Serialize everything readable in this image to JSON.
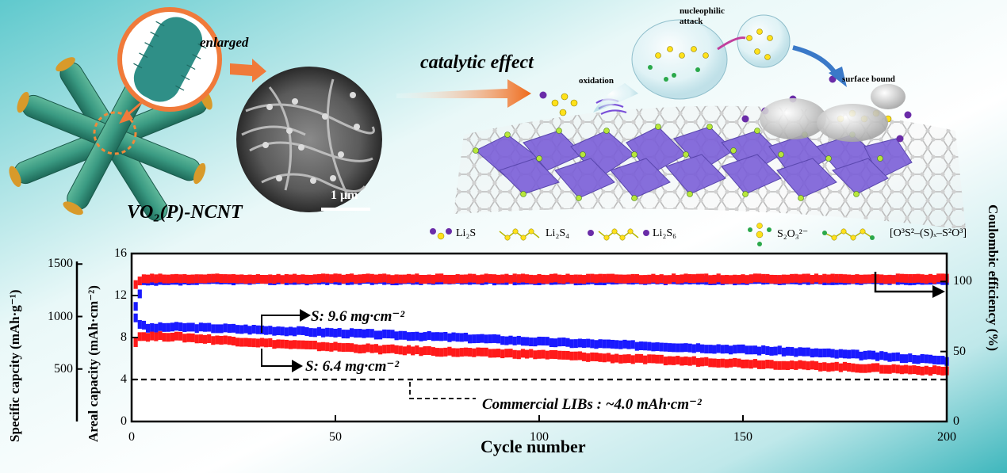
{
  "top": {
    "nanotube_name": "VO₂(P)-NCNT",
    "enlarged_label": "enlarged",
    "scale_bar_label": "1 μm",
    "catalytic_label": "catalytic effect",
    "oxidation_label": "oxidation",
    "nucleophilic_label": "nucleophilic\nattack",
    "surface_bound_label": "surface bound"
  },
  "legend": {
    "items": [
      {
        "label": "Li₂S",
        "icon": "li2s-molecule-icon"
      },
      {
        "label": "Li₂S₄",
        "icon": "li2s4-molecule-icon"
      },
      {
        "label": "Li₂S₆",
        "icon": "li2s6-molecule-icon"
      },
      {
        "label": "S₂O₃²⁻",
        "icon": "thiosulfate-molecule-icon"
      },
      {
        "label": "[O³S²–(S)ₓ–S²O³]",
        "icon": "polythionate-molecule-icon"
      }
    ]
  },
  "chart_data": {
    "type": "line",
    "xlabel": "Cycle number",
    "x_ticks": [
      0,
      50,
      100,
      150,
      200
    ],
    "xlim": [
      0,
      200
    ],
    "axes": {
      "specific": {
        "label": "Specific capcity (mAh·g⁻¹)",
        "ticks": [
          500,
          1000,
          1500
        ]
      },
      "areal": {
        "label": "Areal capacity (mAh·cm⁻²)",
        "ticks": [
          0,
          4,
          8,
          12,
          16
        ],
        "ylim": [
          0,
          16
        ]
      },
      "coulombic": {
        "label": "Coulombic efficiency (%)",
        "ticks": [
          0,
          50,
          100
        ],
        "ylim": [
          0,
          120
        ]
      }
    },
    "series": [
      {
        "name": "S: 9.6 mg·cm⁻²",
        "axis": "areal",
        "color": "#1a1aff",
        "x": [
          1,
          2,
          4,
          10,
          20,
          40,
          60,
          80,
          100,
          120,
          140,
          160,
          180,
          200
        ],
        "y": [
          9.9,
          9.3,
          8.9,
          9.0,
          8.9,
          8.6,
          8.3,
          8.0,
          7.6,
          7.3,
          7.0,
          6.7,
          6.3,
          5.8
        ]
      },
      {
        "name": "S: 6.4 mg·cm⁻²",
        "axis": "areal",
        "color": "#ff1a1a",
        "x": [
          1,
          2,
          10,
          20,
          40,
          60,
          80,
          100,
          120,
          140,
          160,
          180,
          200
        ],
        "y": [
          7.6,
          8.1,
          8.1,
          7.8,
          7.3,
          6.9,
          6.6,
          6.4,
          6.0,
          5.7,
          5.4,
          5.1,
          4.8
        ]
      },
      {
        "name": "Coulombic efficiency (9.6)",
        "axis": "coulombic",
        "color": "#1a1aff",
        "x": [
          1,
          3,
          20,
          60,
          100,
          150,
          200
        ],
        "y": [
          82,
          100,
          101,
          101,
          101,
          101,
          101
        ]
      },
      {
        "name": "Coulombic efficiency (6.4)",
        "axis": "coulombic",
        "color": "#ff1a1a",
        "x": [
          1,
          3,
          20,
          60,
          100,
          150,
          200
        ],
        "y": [
          98,
          102,
          102,
          102,
          102,
          102,
          102
        ]
      }
    ],
    "reference_line": {
      "y": 4.0,
      "axis": "areal",
      "label": "Commercial LIBs : ~4.0  mAh·cm⁻²"
    },
    "annotations": [
      "S: 9.6 mg·cm⁻²",
      "S: 6.4 mg·cm⁻²"
    ]
  }
}
